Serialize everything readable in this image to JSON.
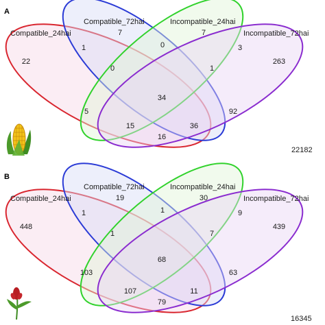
{
  "colors": {
    "set1": "#d9262f",
    "set2": "#2b3bd6",
    "set3": "#31d22c",
    "set4": "#8a2ccf",
    "fill1": "#f7d6e7",
    "fill2": "#d8dcf7",
    "fill3": "#dff5d6",
    "fill4": "#e8d4f3"
  },
  "panels": [
    {
      "letter": "A",
      "set_labels": [
        "Compatible_24hai",
        "Compatible_72hai",
        "Incompatible_24hai",
        "Incompatible_72hai"
      ],
      "regions": {
        "only1": "22",
        "only2": "7",
        "only3": "7",
        "only4": "263",
        "s12": "1",
        "s23": "0",
        "s34": "3",
        "s123": "0",
        "s234": "1",
        "s13": "5",
        "s24": "92",
        "s1234": "34",
        "s134": "15",
        "s124": "36",
        "s14": "16"
      },
      "outside": "22182",
      "icon": "maize-icon"
    },
    {
      "letter": "B",
      "set_labels": [
        "Compatible_24hai",
        "Compatible_72hai",
        "Incompatible_24hai",
        "Incompatible_72hai"
      ],
      "regions": {
        "only1": "448",
        "only2": "19",
        "only3": "30",
        "only4": "439",
        "s12": "1",
        "s23": "1",
        "s34": "9",
        "s123": "1",
        "s234": "7",
        "s13": "103",
        "s24": "63",
        "s1234": "68",
        "s134": "107",
        "s124": "11",
        "s14": "79"
      },
      "outside": "16345",
      "icon": "sorghum-icon"
    }
  ]
}
